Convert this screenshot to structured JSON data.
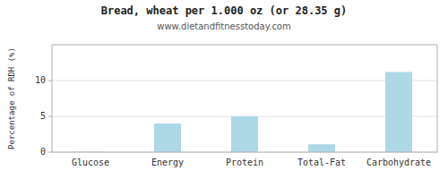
{
  "chart_data": {
    "type": "bar",
    "title": "Bread, wheat per 1.000 oz (or 28.35 g)",
    "subtitle": "www.dietandfitnesstoday.com",
    "ylabel": "Percentage of RDH (%)",
    "categories": [
      "Glucose",
      "Energy",
      "Protein",
      "Total-Fat",
      "Carbohydrate"
    ],
    "values": [
      0.05,
      4.0,
      5.0,
      1.1,
      11.2
    ],
    "color": "#aed8e6",
    "ylim": [
      0,
      15
    ],
    "yticks": [
      0,
      5,
      10
    ],
    "grid": true
  }
}
